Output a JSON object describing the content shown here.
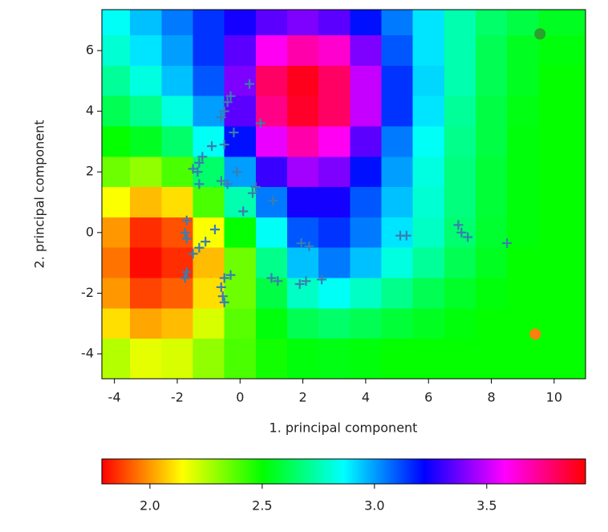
{
  "chart_data": {
    "type": "scatter",
    "xlabel": "1. principal component",
    "ylabel": "2. principal component",
    "xlim": [
      -4.4,
      11.0
    ],
    "ylim": [
      -4.82,
      7.35
    ],
    "xticks": [
      -4,
      -2,
      0,
      2,
      4,
      6,
      8,
      10
    ],
    "yticks": [
      -4,
      -2,
      0,
      2,
      4,
      6
    ],
    "colormap": "hsv",
    "clim": [
      1.786,
      3.94
    ],
    "colorbar_ticks": [
      {
        "value": 2,
        "label": "2.0"
      },
      2.5,
      {
        "value": 3,
        "label": "3.0"
      },
      3.5
    ],
    "field": {
      "x": [
        -4,
        -3,
        -2,
        -1,
        0,
        1,
        2,
        3,
        4,
        5,
        6,
        7,
        8,
        9,
        10
      ],
      "y": [
        7,
        6,
        5,
        4,
        3,
        2,
        1,
        0,
        -1,
        -2,
        -3,
        -4
      ],
      "values": [
        [
          2.85,
          2.95,
          3.05,
          3.15,
          3.25,
          3.35,
          3.4,
          3.35,
          3.2,
          3.05,
          2.9,
          2.75,
          2.65,
          2.6,
          2.55
        ],
        [
          2.8,
          2.9,
          3.0,
          3.15,
          3.35,
          3.6,
          3.7,
          3.65,
          3.4,
          3.1,
          2.9,
          2.75,
          2.62,
          2.55,
          2.52
        ],
        [
          2.72,
          2.82,
          2.95,
          3.1,
          3.4,
          3.8,
          3.9,
          3.8,
          3.5,
          3.15,
          2.92,
          2.75,
          2.62,
          2.55,
          2.5
        ],
        [
          2.62,
          2.7,
          2.82,
          3.0,
          3.35,
          3.75,
          3.88,
          3.8,
          3.5,
          3.15,
          2.9,
          2.72,
          2.6,
          2.53,
          2.5
        ],
        [
          2.5,
          2.55,
          2.65,
          2.85,
          3.2,
          3.55,
          3.7,
          3.6,
          3.35,
          3.05,
          2.85,
          2.7,
          2.6,
          2.52,
          2.5
        ],
        [
          2.35,
          2.3,
          2.4,
          2.65,
          3.0,
          3.3,
          3.45,
          3.4,
          3.2,
          3.0,
          2.82,
          2.68,
          2.58,
          2.52,
          2.5
        ],
        [
          2.15,
          2.05,
          2.1,
          2.4,
          2.75,
          3.05,
          3.25,
          3.25,
          3.1,
          2.95,
          2.8,
          2.68,
          2.58,
          2.52,
          2.5
        ],
        [
          2.0,
          1.85,
          1.9,
          2.15,
          2.5,
          2.85,
          3.1,
          3.15,
          3.05,
          2.9,
          2.78,
          2.66,
          2.57,
          2.52,
          2.5
        ],
        [
          1.95,
          1.8,
          1.85,
          2.05,
          2.35,
          2.7,
          2.95,
          3.05,
          2.95,
          2.82,
          2.72,
          2.62,
          2.55,
          2.5,
          2.5
        ],
        [
          2.0,
          1.88,
          1.92,
          2.1,
          2.35,
          2.6,
          2.78,
          2.85,
          2.78,
          2.7,
          2.62,
          2.56,
          2.52,
          2.5,
          2.5
        ],
        [
          2.1,
          2.02,
          2.05,
          2.2,
          2.38,
          2.52,
          2.62,
          2.65,
          2.62,
          2.58,
          2.55,
          2.52,
          2.5,
          2.5,
          2.5
        ],
        [
          2.25,
          2.18,
          2.2,
          2.3,
          2.4,
          2.48,
          2.52,
          2.53,
          2.52,
          2.5,
          2.5,
          2.5,
          2.5,
          2.5,
          2.5
        ]
      ]
    },
    "series": [
      {
        "color": "#3a7db0",
        "marker": "+",
        "x": [
          0.3,
          -0.3,
          -0.4,
          -0.5,
          -0.6,
          0.65,
          -0.2,
          -0.5,
          -0.9,
          -1.2,
          -1.3,
          -1.5,
          -1.35,
          -1.3,
          -0.6,
          -0.4,
          -0.1,
          0.4,
          0.5,
          1.05,
          0.1,
          -1.7,
          -1.75,
          -1.7,
          -0.8,
          -1.1,
          -1.3,
          -1.5,
          -1.7,
          -1.75,
          -0.5,
          -0.3,
          -0.6,
          -0.55,
          -0.5,
          1.0,
          1.2,
          1.9,
          2.1,
          2.6,
          1.95,
          2.2,
          5.1,
          5.3,
          6.95,
          7.05,
          7.25,
          8.5
        ],
        "y": [
          4.9,
          4.5,
          4.3,
          4.0,
          3.8,
          3.6,
          3.3,
          2.9,
          2.85,
          2.5,
          2.3,
          2.1,
          2.0,
          1.6,
          1.7,
          1.6,
          2.0,
          1.3,
          1.5,
          1.05,
          0.7,
          0.4,
          0.0,
          -0.2,
          0.1,
          -0.3,
          -0.5,
          -0.7,
          -1.3,
          -1.5,
          -1.5,
          -1.4,
          -1.8,
          -2.1,
          -2.3,
          -1.5,
          -1.6,
          -1.7,
          -1.6,
          -1.55,
          -0.35,
          -0.45,
          -0.1,
          -0.1,
          0.25,
          0.0,
          -0.15,
          -0.35
        ]
      },
      {
        "color": "#2ca02c",
        "marker": "o",
        "x": [
          9.55
        ],
        "y": [
          6.55
        ]
      },
      {
        "color": "#ff7f0e",
        "marker": "o",
        "x": [
          9.4
        ],
        "y": [
          -3.35
        ]
      }
    ]
  }
}
